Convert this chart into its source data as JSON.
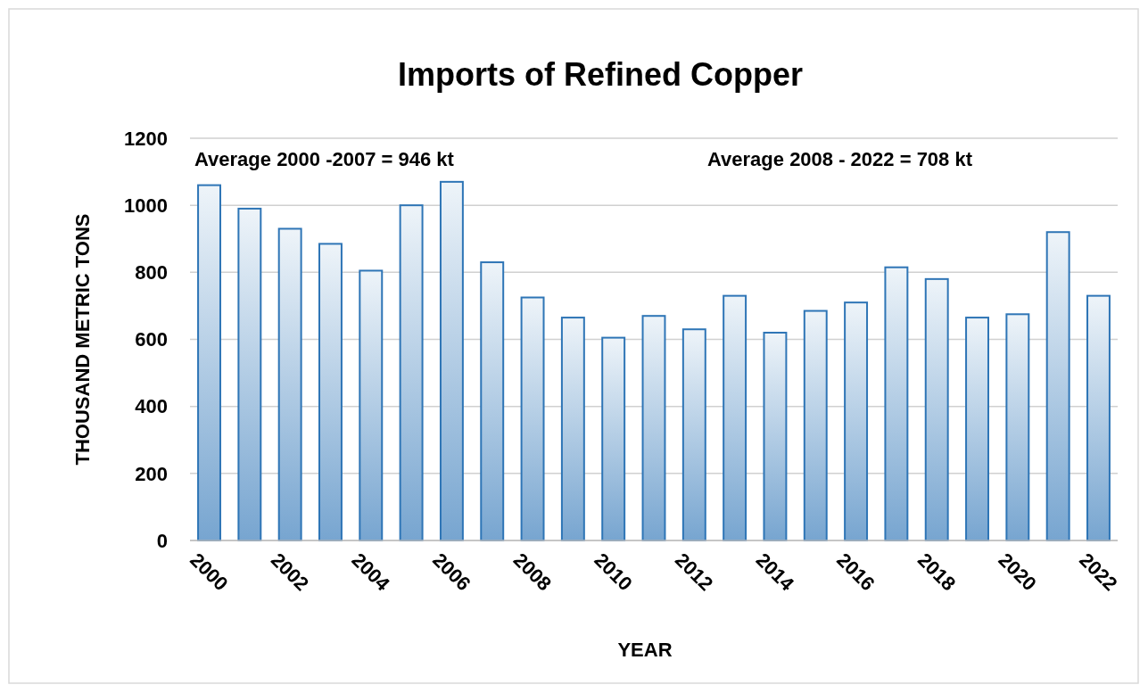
{
  "chart_data": {
    "type": "bar",
    "title": "Imports of Refined Copper",
    "xlabel": "YEAR",
    "ylabel": "THOUSAND METRIC TONS",
    "categories": [
      "2000",
      null,
      "2002",
      null,
      "2004",
      null,
      "2006",
      null,
      "2008",
      null,
      "2010",
      null,
      "2012",
      null,
      "2014",
      null,
      "2016",
      null,
      "2018",
      null,
      "2020",
      null,
      "2022"
    ],
    "values": [
      1060,
      990,
      930,
      885,
      805,
      1000,
      1070,
      830,
      725,
      665,
      605,
      670,
      630,
      730,
      620,
      685,
      710,
      815,
      780,
      665,
      675,
      920,
      730
    ],
    "color": "#2e75b6",
    "ylim": [
      0,
      1200
    ],
    "yticks": [
      0,
      200,
      400,
      600,
      800,
      1000,
      1200
    ],
    "grid": "y",
    "annotations": [
      "Average 2000 -2007 = 946 kt",
      "Average 2008 - 2022 = 708 kt"
    ]
  }
}
